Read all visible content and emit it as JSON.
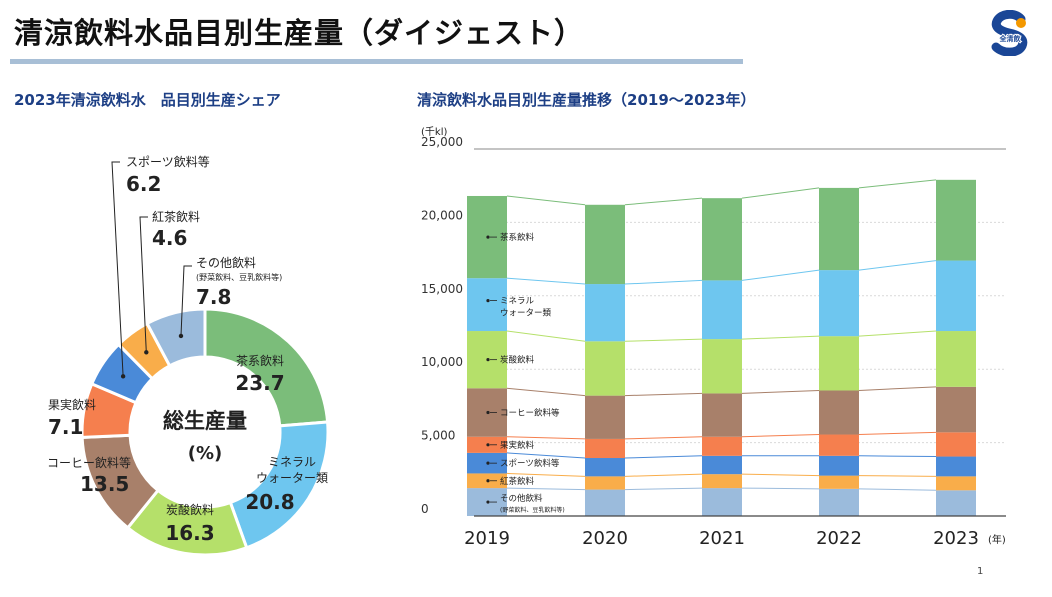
{
  "header": {
    "title": "清涼飲料水品目別生産量（ダイジェスト）",
    "logo_text": "全清飲",
    "page_number": "1"
  },
  "colors": {
    "tea": "#7bbd7a",
    "mineral": "#6ec6ef",
    "carbonated": "#b5e06a",
    "coffee": "#a8806a",
    "fruit": "#f57f4e",
    "sports": "#4a8ad8",
    "black_tea": "#f9ad4a",
    "other": "#9bbbdc",
    "accent": "#1d3f85",
    "underline": "#a8bfd6"
  },
  "chart_data": [
    {
      "type": "pie",
      "variant": "donut",
      "title": "2023年清涼飲料水　品目別生産シェア",
      "center_label": "総生産量",
      "center_unit": "(%)",
      "slices": [
        {
          "key": "tea",
          "label": "茶系飲料",
          "value": 23.7
        },
        {
          "key": "mineral",
          "label": "ミネラル\nウォーター類",
          "value": 20.8
        },
        {
          "key": "carbonated",
          "label": "炭酸飲料",
          "value": 16.3
        },
        {
          "key": "coffee",
          "label": "コーヒー飲料等",
          "value": 13.5
        },
        {
          "key": "fruit",
          "label": "果実飲料",
          "value": 7.1
        },
        {
          "key": "sports",
          "label": "スポーツ飲料等",
          "value": 6.2
        },
        {
          "key": "black_tea",
          "label": "紅茶飲料",
          "value": 4.6
        },
        {
          "key": "other",
          "label": "その他飲料",
          "sublabel": "(野菜飲料、豆乳飲料等)",
          "value": 7.8
        }
      ]
    },
    {
      "type": "bar",
      "stacked": true,
      "title": "清涼飲料水品目別生産量推移（2019〜2023年）",
      "ylabel": "(千kl)",
      "xlabel": "(年)",
      "ylim": [
        0,
        25000
      ],
      "yticks": [
        0,
        5000,
        10000,
        15000,
        20000,
        25000
      ],
      "ytick_labels": [
        "0",
        "5,000",
        "10,000",
        "15,000",
        "20,000",
        "25,000"
      ],
      "categories": [
        "2019",
        "2020",
        "2021",
        "2022",
        "2023"
      ],
      "series": [
        {
          "key": "other",
          "name": "その他飲料",
          "sublabel": "(野菜飲料、豆乳飲料等)",
          "values": [
            1900,
            1800,
            1900,
            1850,
            1750
          ]
        },
        {
          "key": "black_tea",
          "name": "紅茶飲料",
          "values": [
            1000,
            900,
            950,
            900,
            950
          ]
        },
        {
          "key": "sports",
          "name": "スポーツ飲料等",
          "values": [
            1400,
            1250,
            1250,
            1350,
            1350
          ]
        },
        {
          "key": "fruit",
          "name": "果実飲料",
          "values": [
            1100,
            1300,
            1300,
            1450,
            1650
          ]
        },
        {
          "key": "coffee",
          "name": "コーヒー飲料等",
          "values": [
            3300,
            2950,
            2950,
            3000,
            3100
          ]
        },
        {
          "key": "carbonated",
          "name": "炭酸飲料",
          "values": [
            3900,
            3700,
            3700,
            3700,
            3800
          ]
        },
        {
          "key": "mineral",
          "name": "ミネラル\nウォーター類",
          "values": [
            3600,
            3900,
            4000,
            4500,
            4800
          ]
        },
        {
          "key": "tea",
          "name": "茶系飲料",
          "values": [
            5600,
            5400,
            5600,
            5600,
            5500
          ]
        }
      ]
    }
  ]
}
